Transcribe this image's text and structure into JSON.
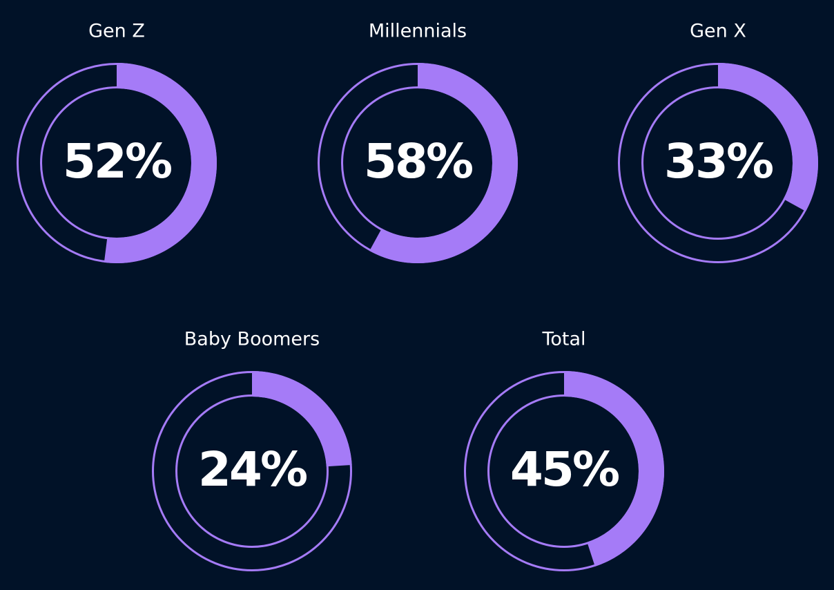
{
  "chart_data": {
    "type": "pie",
    "variant": "donut",
    "colors": {
      "background": "#011228",
      "accent": "#A57BF7",
      "text": "#FFFFFF"
    },
    "items": [
      {
        "label": "Gen Z",
        "value": 52,
        "display": "52%"
      },
      {
        "label": "Millennials",
        "value": 58,
        "display": "58%"
      },
      {
        "label": "Gen X",
        "value": 33,
        "display": "33%"
      },
      {
        "label": "Baby Boomers",
        "value": 24,
        "display": "24%"
      },
      {
        "label": "Total",
        "value": 45,
        "display": "45%"
      }
    ]
  }
}
